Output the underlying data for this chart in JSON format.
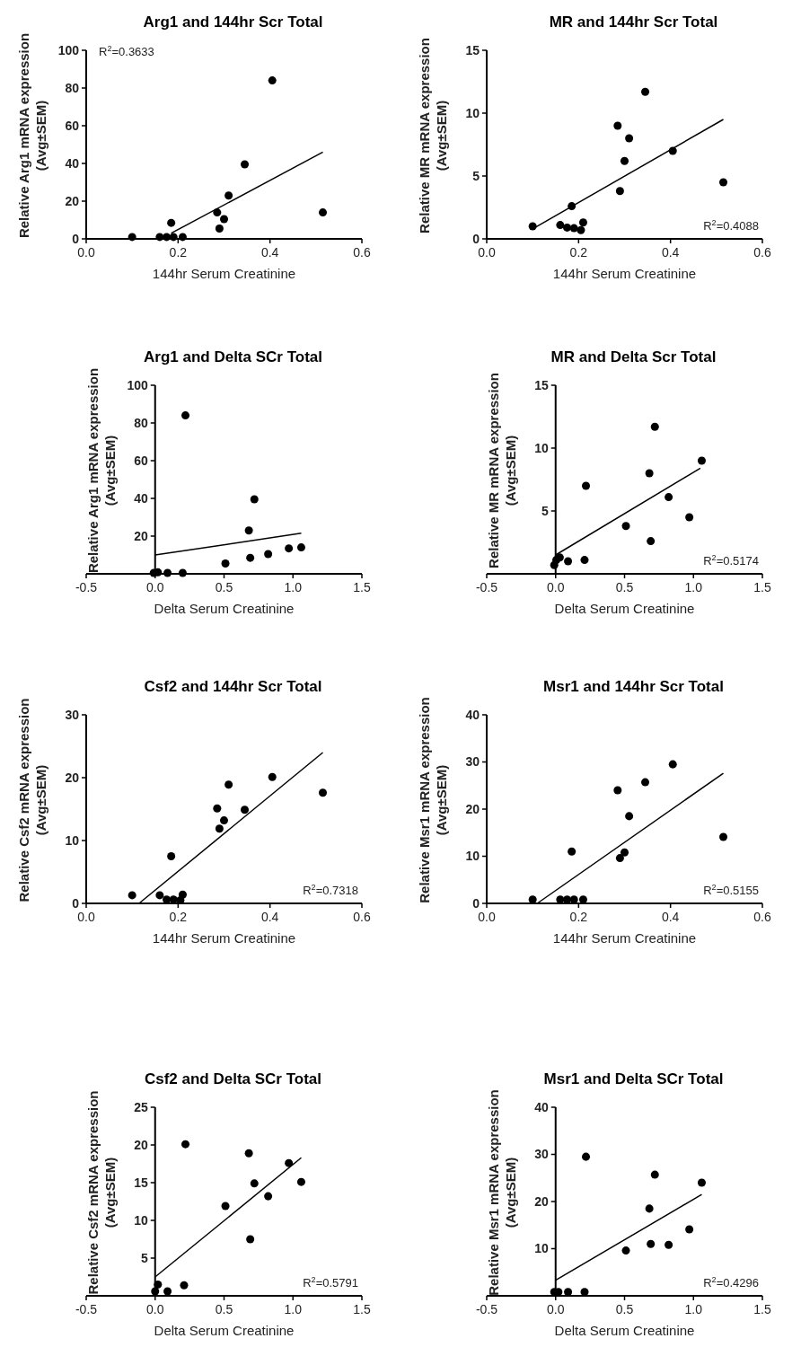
{
  "chart_data": [
    {
      "type": "scatter",
      "title": "Arg1 and 144hr Scr Total",
      "xlabel": "144hr Serum Creatinine",
      "ylabel": "Relative Arg1 mRNA expression\n(Avg±SEM)",
      "annotations": [
        "R$^{2}$=0.3633"
      ],
      "xlim": [
        0,
        0.6
      ],
      "xticks": [
        {
          "value": 0,
          "label": "0.0"
        },
        {
          "value": 0.2,
          "label": "0.2"
        },
        {
          "value": 0.4,
          "label": "0.4"
        },
        {
          "value": 0.6,
          "label": "0.6"
        }
      ],
      "ylim": [
        0,
        100
      ],
      "yticks": [
        0,
        20,
        40,
        60,
        80,
        100
      ],
      "series": [
        {
          "marker": "circle",
          "color": "#000000",
          "x": [
            0.1,
            0.16,
            0.175,
            0.19,
            0.21,
            0.185,
            0.285,
            0.29,
            0.3,
            0.31,
            0.345,
            0.405,
            0.515
          ],
          "values": [
            1,
            1,
            1,
            1,
            1,
            8.5,
            14,
            5.5,
            10.5,
            23,
            39.5,
            84,
            14
          ]
        },
        {
          "type": "line",
          "color": "#000000",
          "x": [
            0.185,
            0.515
          ],
          "values": [
            3,
            46
          ]
        }
      ]
    },
    {
      "type": "scatter",
      "title": "MR and 144hr Scr Total",
      "xlabel": "144hr Serum Creatinine",
      "ylabel": "Relative MR mRNA expression\n(Avg±SEM)",
      "annotations": [
        "R$^{2}$=0.4088"
      ],
      "xlim": [
        0,
        0.6
      ],
      "xticks": [
        {
          "value": 0,
          "label": "0.0"
        },
        {
          "value": 0.2,
          "label": "0.2"
        },
        {
          "value": 0.4,
          "label": "0.4"
        },
        {
          "value": 0.6,
          "label": "0.6"
        }
      ],
      "ylim": [
        0,
        15
      ],
      "yticks": [
        0,
        5,
        10,
        15
      ],
      "series": [
        {
          "marker": "circle",
          "color": "#000000",
          "x": [
            0.1,
            0.16,
            0.175,
            0.19,
            0.205,
            0.21,
            0.185,
            0.285,
            0.29,
            0.3,
            0.31,
            0.345,
            0.405,
            0.515
          ],
          "values": [
            1.0,
            1.1,
            0.9,
            0.85,
            0.7,
            1.3,
            2.6,
            9.0,
            3.8,
            6.2,
            8.0,
            11.7,
            7.0,
            4.5
          ]
        },
        {
          "type": "line",
          "color": "#000000",
          "x": [
            0.1,
            0.515
          ],
          "values": [
            0.8,
            9.5
          ]
        }
      ]
    },
    {
      "type": "scatter",
      "title": "Arg1 and Delta SCr Total",
      "xlabel": "Delta Serum Creatinine",
      "ylabel": "Relative Arg1 mRNA expression\n(Avg±SEM)",
      "xlim": [
        -0.5,
        1.5
      ],
      "xticks": [
        {
          "value": -0.5,
          "label": "-0.5"
        },
        {
          "value": 0,
          "label": "0.0"
        },
        {
          "value": 0.5,
          "label": "0.5"
        },
        {
          "value": 1,
          "label": "1.0"
        },
        {
          "value": 1.5,
          "label": "1.5"
        }
      ],
      "ylim": [
        0,
        100
      ],
      "yticks": [
        20,
        40,
        60,
        80,
        100
      ],
      "series": [
        {
          "marker": "circle",
          "color": "#000000",
          "x": [
            -0.01,
            0.02,
            0.09,
            0.2,
            0.22,
            0.51,
            0.68,
            0.69,
            0.72,
            0.82,
            0.97,
            1.06
          ],
          "values": [
            0.5,
            0.8,
            0.5,
            0.5,
            84,
            5.5,
            23,
            8.5,
            39.5,
            10.5,
            13.5,
            14
          ]
        },
        {
          "type": "line",
          "color": "#000000",
          "x": [
            0,
            1.06
          ],
          "values": [
            10,
            21.5
          ]
        }
      ]
    },
    {
      "type": "scatter",
      "title": "MR and Delta Scr Total",
      "xlabel": "Delta Serum Creatinine",
      "ylabel": "Relative MR mRNA expression\n(Avg±SEM)",
      "annotations": [
        "R$^{2}$=0.5174"
      ],
      "xlim": [
        -0.5,
        1.5
      ],
      "xticks": [
        {
          "value": -0.5,
          "label": "-0.5"
        },
        {
          "value": 0,
          "label": "0.0"
        },
        {
          "value": 0.5,
          "label": "0.5"
        },
        {
          "value": 1,
          "label": "1.0"
        },
        {
          "value": 1.5,
          "label": "1.5"
        }
      ],
      "ylim": [
        0,
        15
      ],
      "yticks": [
        5,
        10,
        15
      ],
      "series": [
        {
          "marker": "circle",
          "color": "#000000",
          "x": [
            -0.01,
            0.005,
            0.03,
            0.09,
            0.21,
            0.22,
            0.51,
            0.68,
            0.69,
            0.72,
            0.82,
            0.97,
            1.06
          ],
          "values": [
            0.7,
            1.1,
            1.3,
            1.0,
            1.1,
            7.0,
            3.8,
            8.0,
            2.6,
            11.7,
            6.1,
            4.5,
            9.0
          ]
        },
        {
          "type": "line",
          "color": "#000000",
          "x": [
            0,
            1.05
          ],
          "values": [
            1.5,
            8.4
          ]
        }
      ]
    },
    {
      "type": "scatter",
      "title": "Csf2 and 144hr Scr Total",
      "xlabel": "144hr Serum Creatinine",
      "ylabel": "Relative Csf2 mRNA expression\n(Avg±SEM)",
      "annotations": [
        "R$^{2}$=0.7318"
      ],
      "xlim": [
        0,
        0.6
      ],
      "xticks": [
        {
          "value": 0,
          "label": "0.0"
        },
        {
          "value": 0.2,
          "label": "0.2"
        },
        {
          "value": 0.4,
          "label": "0.4"
        },
        {
          "value": 0.6,
          "label": "0.6"
        }
      ],
      "ylim": [
        0,
        30
      ],
      "yticks": [
        0,
        10,
        20,
        30
      ],
      "series": [
        {
          "marker": "circle",
          "color": "#000000",
          "x": [
            0.1,
            0.16,
            0.175,
            0.19,
            0.205,
            0.21,
            0.185,
            0.285,
            0.29,
            0.3,
            0.31,
            0.345,
            0.405,
            0.515
          ],
          "values": [
            1.3,
            1.3,
            0.6,
            0.6,
            0.5,
            1.4,
            7.5,
            15.1,
            11.9,
            13.2,
            18.9,
            14.9,
            20.1,
            17.6
          ]
        },
        {
          "type": "line",
          "color": "#000000",
          "x": [
            0.115,
            0.515
          ],
          "values": [
            0,
            24
          ]
        }
      ]
    },
    {
      "type": "scatter",
      "title": "Msr1 and 144hr Scr Total",
      "xlabel": "144hr Serum Creatinine",
      "ylabel": "Relative Msr1 mRNA expression\n(Avg±SEM)",
      "annotations": [
        "R$^{2}$=0.5155"
      ],
      "xlim": [
        0,
        0.6
      ],
      "xticks": [
        {
          "value": 0,
          "label": "0.0"
        },
        {
          "value": 0.2,
          "label": "0.2"
        },
        {
          "value": 0.4,
          "label": "0.4"
        },
        {
          "value": 0.6,
          "label": "0.6"
        }
      ],
      "ylim": [
        0,
        40
      ],
      "yticks": [
        0,
        10,
        20,
        30,
        40
      ],
      "series": [
        {
          "marker": "circle",
          "color": "#000000",
          "x": [
            0.1,
            0.16,
            0.175,
            0.19,
            0.21,
            0.185,
            0.285,
            0.29,
            0.3,
            0.31,
            0.345,
            0.405,
            0.515
          ],
          "values": [
            0.8,
            0.8,
            0.8,
            0.8,
            0.8,
            11,
            24,
            9.6,
            10.8,
            18.5,
            25.7,
            29.5,
            14.1
          ]
        },
        {
          "type": "line",
          "color": "#000000",
          "x": [
            0.11,
            0.515
          ],
          "values": [
            0,
            27.6
          ]
        }
      ]
    },
    {
      "type": "scatter",
      "title": "Csf2 and Delta SCr Total",
      "xlabel": "Delta Serum Creatinine",
      "ylabel": "Relative Csf2 mRNA expression\n(Avg±SEM)",
      "annotations": [
        "R$^{2}$=0.5791"
      ],
      "xlim": [
        -0.5,
        1.5
      ],
      "xticks": [
        {
          "value": -0.5,
          "label": "-0.5"
        },
        {
          "value": 0,
          "label": "0.0"
        },
        {
          "value": 0.5,
          "label": "0.5"
        },
        {
          "value": 1,
          "label": "1.0"
        },
        {
          "value": 1.5,
          "label": "1.5"
        }
      ],
      "ylim": [
        0,
        25
      ],
      "yticks": [
        5,
        10,
        15,
        20,
        25
      ],
      "series": [
        {
          "marker": "circle",
          "color": "#000000",
          "x": [
            0.0,
            0.02,
            0.09,
            0.21,
            0.22,
            0.51,
            0.68,
            0.69,
            0.72,
            0.82,
            0.97,
            1.06
          ],
          "values": [
            0.6,
            1.5,
            0.6,
            1.4,
            20.1,
            11.9,
            18.9,
            7.5,
            14.9,
            13.2,
            17.6,
            15.1
          ]
        },
        {
          "type": "line",
          "color": "#000000",
          "x": [
            0,
            1.06
          ],
          "values": [
            2.5,
            18.3
          ]
        }
      ]
    },
    {
      "type": "scatter",
      "title": "Msr1 and Delta SCr Total",
      "xlabel": "Delta Serum Creatinine",
      "ylabel": "Relative Msr1 mRNA expression\n(Avg±SEM)",
      "annotations": [
        "R$^{2}$=0.4296"
      ],
      "xlim": [
        -0.5,
        1.5
      ],
      "xticks": [
        {
          "value": -0.5,
          "label": "-0.5"
        },
        {
          "value": 0,
          "label": "0.0"
        },
        {
          "value": 0.5,
          "label": "0.5"
        },
        {
          "value": 1,
          "label": "1.0"
        },
        {
          "value": 1.5,
          "label": "1.5"
        }
      ],
      "ylim": [
        0,
        40
      ],
      "yticks": [
        10,
        20,
        30,
        40
      ],
      "series": [
        {
          "marker": "circle",
          "color": "#000000",
          "x": [
            -0.01,
            0.02,
            0.09,
            0.21,
            0.22,
            0.51,
            0.68,
            0.69,
            0.72,
            0.82,
            0.97,
            1.06
          ],
          "values": [
            0.8,
            0.8,
            0.8,
            0.8,
            29.5,
            9.6,
            18.5,
            11,
            25.7,
            10.8,
            14.1,
            24
          ]
        },
        {
          "type": "line",
          "color": "#000000",
          "x": [
            0,
            1.06
          ],
          "values": [
            3.3,
            21.5
          ]
        }
      ]
    }
  ]
}
